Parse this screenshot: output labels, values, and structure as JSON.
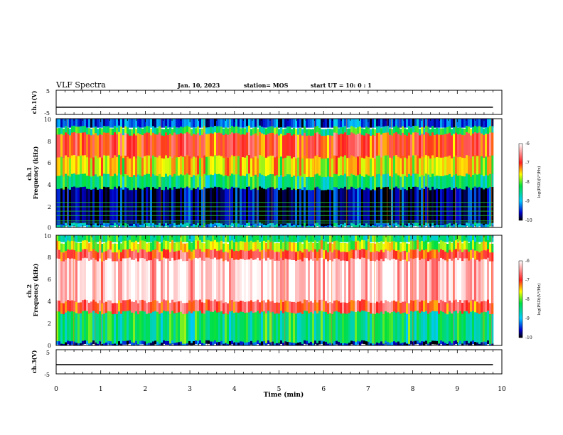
{
  "header": {
    "title": "VLF Spectra",
    "date": "Jan. 10, 2023",
    "station": "station= MOS",
    "start_ut": "start  UT  =   10: 0  : 1"
  },
  "chart_data": {
    "type": "heatmap",
    "title": "VLF Spectra",
    "xlabel": "Time (min)",
    "xlim": [
      0,
      10
    ],
    "x_ticks": [
      "0",
      "1",
      "2",
      "3",
      "4",
      "5",
      "6",
      "7",
      "8",
      "9",
      "10"
    ],
    "data_end_min": 9.8,
    "panels": [
      {
        "name": "ch1-waveform",
        "type": "line",
        "ylabel": "ch.1(V)",
        "ylim": [
          -5,
          5
        ],
        "y_ticks": [
          "5",
          "-5"
        ],
        "level": -2
      },
      {
        "name": "ch1-spectrogram",
        "type": "heatmap",
        "ylabel": "ch.1\nFrequency (kHz)",
        "ylim": [
          0,
          10
        ],
        "y_ticks": [
          "0",
          "2",
          "4",
          "6",
          "8",
          "10"
        ],
        "colorbar": {
          "label": "log(PSD)(V²/Hz)",
          "range": [
            -10,
            -6
          ],
          "ticks": [
            "-6",
            "-7",
            "-8",
            "-9",
            "-10"
          ]
        },
        "bands": [
          {
            "from_khz": 9.2,
            "to_khz": 10,
            "log_psd": -9.4
          },
          {
            "from_khz": 8.6,
            "to_khz": 9.2,
            "log_psd": -8.3
          },
          {
            "from_khz": 6.5,
            "to_khz": 8.6,
            "log_psd": -7.0
          },
          {
            "from_khz": 4.8,
            "to_khz": 6.5,
            "log_psd": -7.6
          },
          {
            "from_khz": 3.6,
            "to_khz": 4.8,
            "log_psd": -8.4
          },
          {
            "from_khz": 0.3,
            "to_khz": 3.6,
            "log_psd": -9.8
          },
          {
            "from_khz": 0,
            "to_khz": 0.3,
            "log_psd": -8.9
          }
        ],
        "lines_khz": [
          0.4,
          0.6,
          1.1,
          1.5,
          1.9,
          2.3
        ]
      },
      {
        "name": "ch2-spectrogram",
        "type": "heatmap",
        "ylabel": "ch.2\nFrequency (kHz)",
        "ylim": [
          0,
          10
        ],
        "y_ticks": [
          "0",
          "2",
          "4",
          "6",
          "8",
          "10"
        ],
        "colorbar": {
          "label": "log(PSD)(V²/Hz)",
          "range": [
            -10,
            -6
          ],
          "ticks": [
            "-6",
            "-7",
            "-8",
            "-9",
            "-10"
          ]
        },
        "bands": [
          {
            "from_khz": 9.4,
            "to_khz": 10,
            "log_psd": -8.4
          },
          {
            "from_khz": 8.6,
            "to_khz": 9.4,
            "log_psd": -7.8
          },
          {
            "from_khz": 7.8,
            "to_khz": 8.6,
            "log_psd": -6.9
          },
          {
            "from_khz": 4.0,
            "to_khz": 7.8,
            "log_psd": -6.2
          },
          {
            "from_khz": 3.0,
            "to_khz": 4.0,
            "log_psd": -6.9
          },
          {
            "from_khz": 0.3,
            "to_khz": 3.0,
            "log_psd": -8.4
          },
          {
            "from_khz": 0,
            "to_khz": 0.3,
            "log_psd": -9.6
          }
        ],
        "lines_khz": []
      },
      {
        "name": "ch3-waveform",
        "type": "line",
        "ylabel": "ch.3(V)",
        "ylim": [
          -5,
          5
        ],
        "y_ticks": [
          "5",
          "-5"
        ],
        "level": -1.2
      }
    ]
  }
}
